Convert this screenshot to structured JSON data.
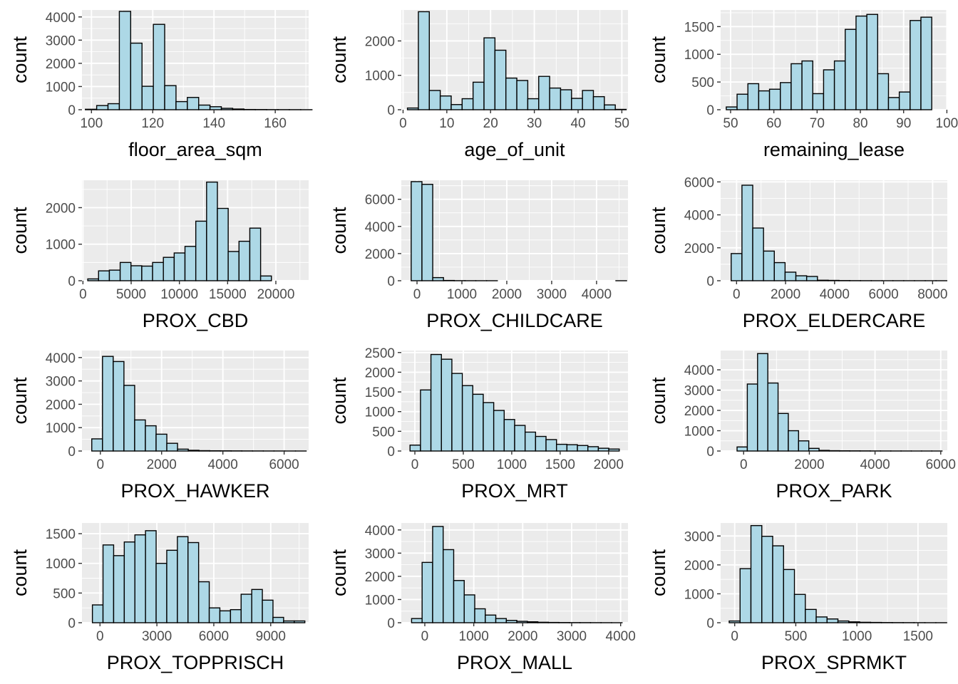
{
  "colors": {
    "panel_bg": "#ebebeb",
    "grid_major": "#ffffff",
    "bar_fill": "#add8e6",
    "bar_stroke": "#000000",
    "tick_text": "#4d4d4d",
    "tick_mark": "#333333"
  },
  "chart_data": [
    {
      "type": "bar",
      "xlabel": "floor_area_sqm",
      "ylabel": "count",
      "xlim": [
        96.9,
        170.9
      ],
      "ylim": [
        0,
        4300
      ],
      "xticks": [
        100,
        120,
        140,
        160
      ],
      "xtick_labels": [
        "100",
        "120",
        "140",
        "160"
      ],
      "yticks": [
        0,
        1000,
        2000,
        3000,
        4000
      ],
      "ytick_labels": [
        "0",
        "1000",
        "2000",
        "3000",
        "4000"
      ],
      "bin_start": 98.0,
      "bin_width": 3.7,
      "values": [
        20,
        180,
        260,
        4240,
        2870,
        1010,
        3680,
        1040,
        350,
        530,
        200,
        130,
        60,
        30,
        10,
        8,
        5,
        4,
        3,
        2
      ]
    },
    {
      "type": "bar",
      "xlabel": "age_of_unit",
      "ylabel": "count",
      "xlim": [
        -0.4,
        51.4
      ],
      "ylim": [
        0,
        2900
      ],
      "xticks": [
        0,
        10,
        20,
        30,
        40,
        50
      ],
      "xtick_labels": [
        "0",
        "10",
        "20",
        "30",
        "40",
        "50"
      ],
      "yticks": [
        0,
        1000,
        2000
      ],
      "ytick_labels": [
        "0",
        "1000",
        "2000"
      ],
      "bin_start": 1.0,
      "bin_width": 2.5,
      "values": [
        50,
        2850,
        560,
        400,
        150,
        320,
        800,
        2090,
        1730,
        920,
        850,
        320,
        970,
        630,
        580,
        330,
        560,
        380,
        140,
        10
      ]
    },
    {
      "type": "bar",
      "xlabel": "remaining_lease",
      "ylabel": "count",
      "xlim": [
        47.7,
        100.1
      ],
      "ylim": [
        0,
        1800
      ],
      "xticks": [
        50,
        60,
        70,
        80,
        90,
        100
      ],
      "xtick_labels": [
        "50",
        "60",
        "70",
        "80",
        "90",
        "100"
      ],
      "yticks": [
        0,
        500,
        1000,
        1500
      ],
      "ytick_labels": [
        "0",
        "500",
        "1000",
        "1500"
      ],
      "bin_start": 49.0,
      "bin_width": 2.5,
      "values": [
        50,
        280,
        470,
        340,
        370,
        490,
        830,
        880,
        290,
        720,
        880,
        1450,
        1690,
        1720,
        650,
        220,
        320,
        1610,
        1670,
        0
      ]
    },
    {
      "type": "bar",
      "xlabel": "PROX_CBD",
      "ylabel": "count",
      "xlim": [
        -100,
        23400
      ],
      "ylim": [
        0,
        2750
      ],
      "xticks": [
        0,
        5000,
        10000,
        15000,
        20000
      ],
      "xtick_labels": [
        "0",
        "5000",
        "10000",
        "15000",
        "20000"
      ],
      "yticks": [
        0,
        1000,
        2000
      ],
      "ytick_labels": [
        "0",
        "1000",
        "2000"
      ],
      "bin_start": 500,
      "bin_width": 1120,
      "values": [
        50,
        270,
        290,
        500,
        410,
        400,
        500,
        640,
        760,
        940,
        1630,
        2700,
        1980,
        800,
        1080,
        1440,
        130,
        0,
        0,
        0
      ]
    },
    {
      "type": "bar",
      "xlabel": "PROX_CHILDCARE",
      "ylabel": "count",
      "xlim": [
        -350,
        4700
      ],
      "ylim": [
        0,
        7400
      ],
      "xticks": [
        0,
        1000,
        2000,
        3000,
        4000
      ],
      "xtick_labels": [
        "0",
        "1000",
        "2000",
        "3000",
        "4000"
      ],
      "yticks": [
        0,
        2000,
        4000,
        6000
      ],
      "ytick_labels": [
        "0",
        "2000",
        "4000",
        "6000"
      ],
      "bin_start": -130,
      "bin_width": 240,
      "values": [
        7300,
        7100,
        230,
        20,
        5,
        2,
        1,
        1,
        0,
        0,
        0,
        0,
        0,
        0,
        0,
        0,
        0,
        0,
        0,
        1
      ]
    },
    {
      "type": "bar",
      "xlabel": "PROX_ELDERCARE",
      "ylabel": "count",
      "xlim": [
        -650,
        8600
      ],
      "ylim": [
        0,
        6100
      ],
      "xticks": [
        0,
        2000,
        4000,
        6000,
        8000
      ],
      "xtick_labels": [
        "0",
        "2000",
        "4000",
        "6000",
        "8000"
      ],
      "yticks": [
        0,
        2000,
        4000,
        6000
      ],
      "ytick_labels": [
        "0",
        "2000",
        "4000",
        "6000"
      ],
      "bin_start": -220,
      "bin_width": 440,
      "values": [
        1650,
        5800,
        3200,
        1800,
        1100,
        520,
        300,
        260,
        30,
        20,
        10,
        5,
        3,
        2,
        1,
        1,
        1,
        1,
        1,
        1
      ]
    },
    {
      "type": "bar",
      "xlabel": "PROX_HAWKER",
      "ylabel": "count",
      "xlim": [
        -600,
        6800
      ],
      "ylim": [
        0,
        4300
      ],
      "xticks": [
        0,
        2000,
        4000,
        6000
      ],
      "xtick_labels": [
        "0",
        "2000",
        "4000",
        "6000"
      ],
      "yticks": [
        0,
        1000,
        2000,
        3000,
        4000
      ],
      "ytick_labels": [
        "0",
        "1000",
        "2000",
        "3000",
        "4000"
      ],
      "bin_start": -280,
      "bin_width": 350,
      "values": [
        520,
        4050,
        3830,
        2810,
        1330,
        1080,
        720,
        330,
        80,
        30,
        15,
        10,
        8,
        6,
        4,
        3,
        2,
        2,
        1,
        1
      ]
    },
    {
      "type": "bar",
      "xlabel": "PROX_MRT",
      "ylabel": "count",
      "xlim": [
        -140,
        2200
      ],
      "ylim": [
        0,
        2550
      ],
      "xticks": [
        0,
        500,
        1000,
        1500,
        2000
      ],
      "xtick_labels": [
        "0",
        "500",
        "1000",
        "1500",
        "2000"
      ],
      "yticks": [
        0,
        500,
        1000,
        1500,
        2000,
        2500
      ],
      "ytick_labels": [
        "0",
        "500",
        "1000",
        "1500",
        "2000",
        "2500"
      ],
      "bin_start": -50,
      "bin_width": 108,
      "values": [
        150,
        1550,
        2450,
        2330,
        1970,
        1660,
        1440,
        1230,
        1030,
        800,
        650,
        480,
        370,
        290,
        170,
        160,
        140,
        110,
        70,
        50
      ]
    },
    {
      "type": "bar",
      "xlabel": "PROX_PARK",
      "ylabel": "count",
      "xlim": [
        -700,
        6200
      ],
      "ylim": [
        0,
        4950
      ],
      "xticks": [
        0,
        2000,
        4000,
        6000
      ],
      "xtick_labels": [
        "0",
        "2000",
        "4000",
        "6000"
      ],
      "yticks": [
        0,
        1000,
        2000,
        3000,
        4000
      ],
      "ytick_labels": [
        "0",
        "1000",
        "2000",
        "3000",
        "4000"
      ],
      "bin_start": -200,
      "bin_width": 312,
      "values": [
        200,
        3300,
        4800,
        3350,
        1850,
        1000,
        500,
        130,
        30,
        15,
        10,
        8,
        6,
        4,
        3,
        2,
        2,
        1,
        1,
        1
      ]
    },
    {
      "type": "bar",
      "xlabel": "PROX_TOPPRISCH",
      "ylabel": "count",
      "xlim": [
        -950,
        11000
      ],
      "ylim": [
        0,
        1680
      ],
      "xticks": [
        0,
        3000,
        6000,
        9000
      ],
      "xtick_labels": [
        "0",
        "3000",
        "6000",
        "9000"
      ],
      "yticks": [
        0,
        500,
        1000,
        1500
      ],
      "ytick_labels": [
        "0",
        "500",
        "1000",
        "1500"
      ],
      "bin_start": -400,
      "bin_width": 560,
      "values": [
        300,
        1310,
        1130,
        1360,
        1480,
        1550,
        1000,
        1220,
        1450,
        1350,
        690,
        250,
        200,
        220,
        480,
        560,
        380,
        90,
        30,
        30
      ]
    },
    {
      "type": "bar",
      "xlabel": "PROX_MALL",
      "ylabel": "count",
      "xlim": [
        -480,
        4150
      ],
      "ylim": [
        0,
        4300
      ],
      "xticks": [
        0,
        1000,
        2000,
        3000,
        4000
      ],
      "xtick_labels": [
        "0",
        "1000",
        "2000",
        "3000",
        "4000"
      ],
      "yticks": [
        0,
        1000,
        2000,
        3000,
        4000
      ],
      "ytick_labels": [
        "0",
        "1000",
        "2000",
        "3000",
        "4000"
      ],
      "bin_start": -270,
      "bin_width": 215,
      "values": [
        180,
        2600,
        4150,
        3150,
        1820,
        1200,
        600,
        330,
        180,
        100,
        60,
        40,
        20,
        12,
        8,
        5,
        4,
        3,
        2,
        1
      ]
    },
    {
      "type": "bar",
      "xlabel": "PROX_SPRMKT",
      "ylabel": "count",
      "xlim": [
        -115,
        1740
      ],
      "ylim": [
        0,
        3450
      ],
      "xticks": [
        0,
        500,
        1000,
        1500
      ],
      "xtick_labels": [
        "0",
        "500",
        "1000",
        "1500"
      ],
      "yticks": [
        0,
        1000,
        2000,
        3000
      ],
      "ytick_labels": [
        "0",
        "1000",
        "2000",
        "3000"
      ],
      "bin_start": -45,
      "bin_width": 89,
      "values": [
        60,
        1870,
        3360,
        2990,
        2660,
        1840,
        980,
        460,
        200,
        130,
        60,
        30,
        15,
        10,
        6,
        4,
        3,
        2,
        1,
        1
      ]
    }
  ]
}
